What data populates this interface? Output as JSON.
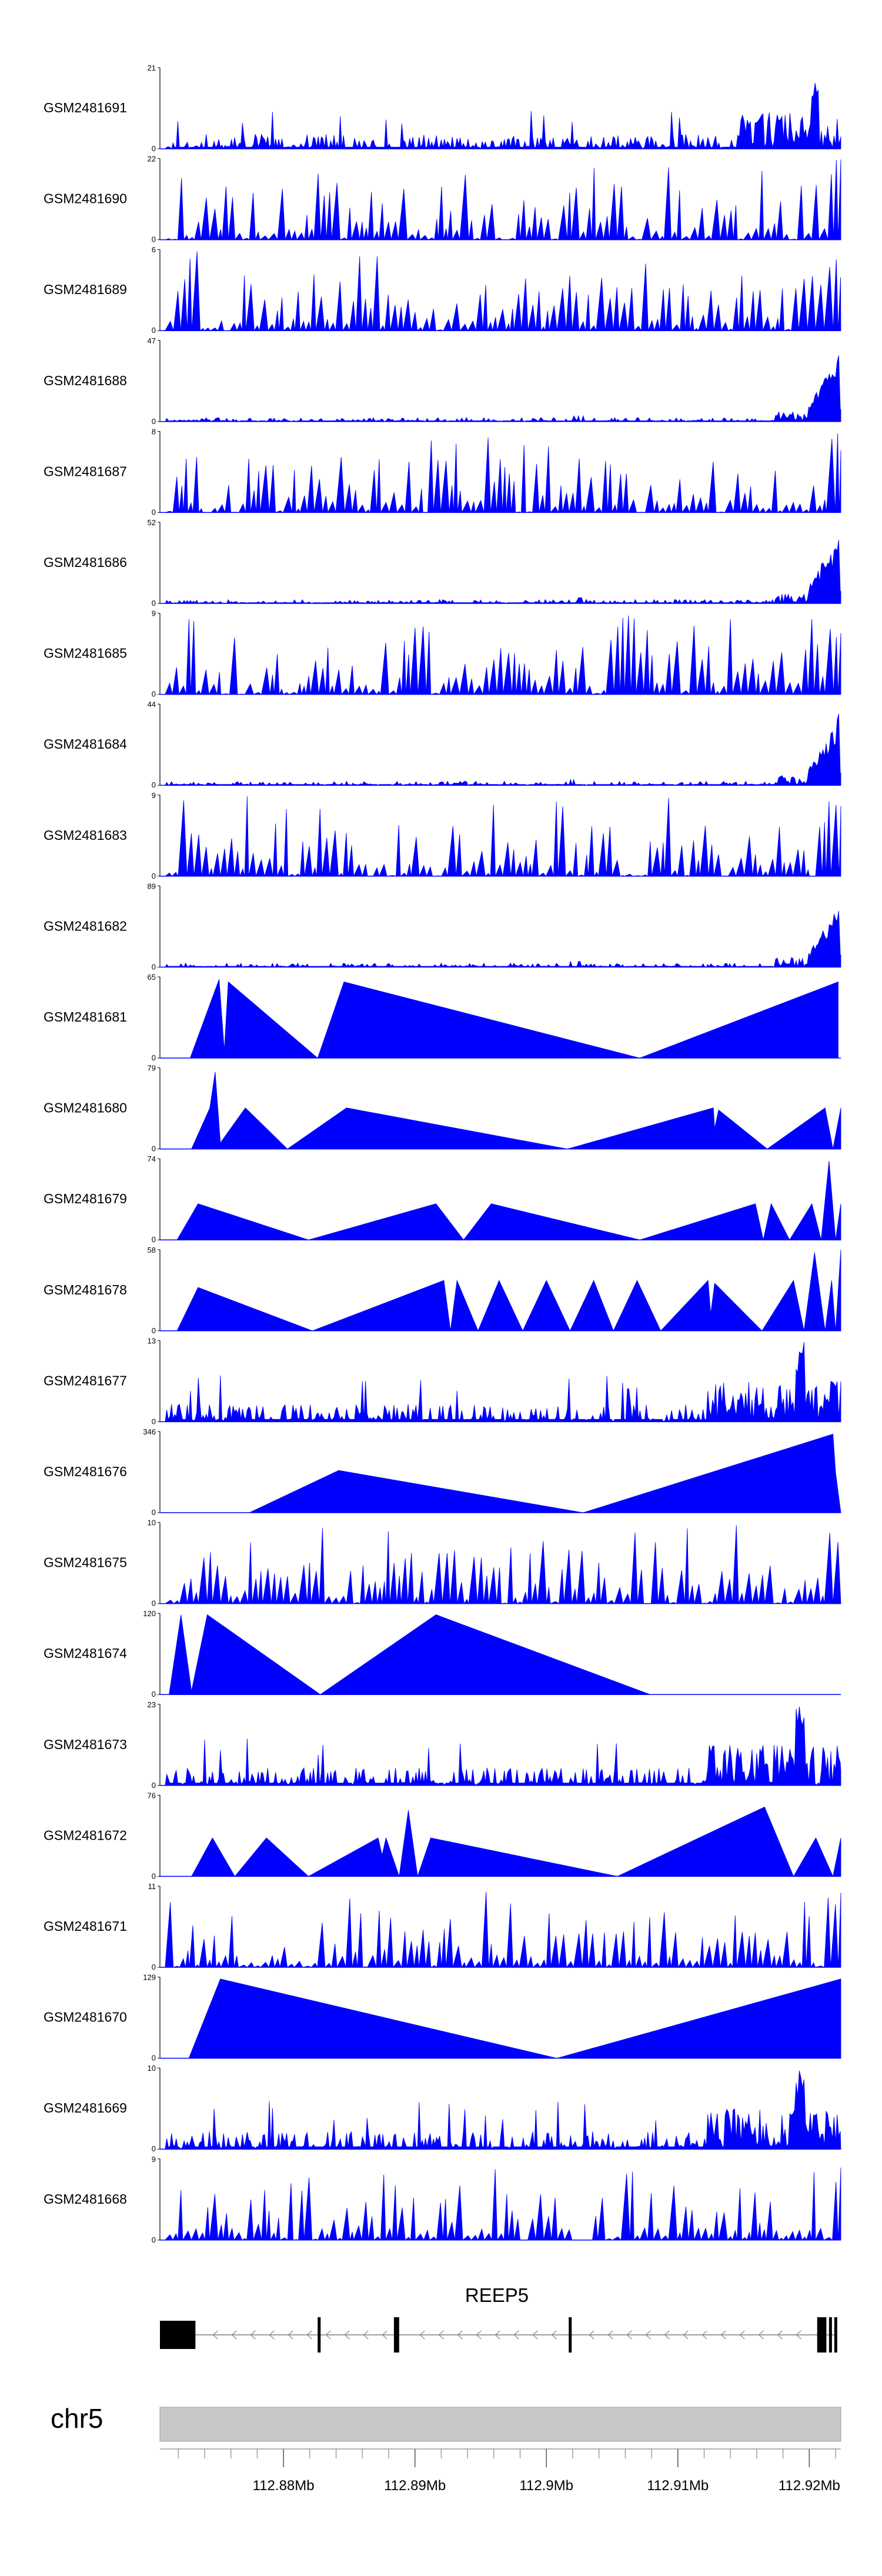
{
  "chart_data": {
    "type": "area",
    "title": "",
    "color": "#0000ff",
    "x_unit": "Mb",
    "xlim": [
      112.8706,
      112.9224
    ],
    "tracks": [
      {
        "name": "GSM2481691",
        "ymax": 21,
        "pattern": "dense_peak_end",
        "seed": 11
      },
      {
        "name": "GSM2481690",
        "ymax": 22,
        "pattern": "sparse",
        "seed": 12
      },
      {
        "name": "GSM2481689",
        "ymax": 6,
        "pattern": "spiky",
        "seed": 13
      },
      {
        "name": "GSM2481688",
        "ymax": 47,
        "pattern": "end_peak",
        "seed": 14
      },
      {
        "name": "GSM2481687",
        "ymax": 8,
        "pattern": "spiky",
        "seed": 15
      },
      {
        "name": "GSM2481686",
        "ymax": 52,
        "pattern": "end_peak",
        "seed": 16
      },
      {
        "name": "GSM2481685",
        "ymax": 9,
        "pattern": "spiky",
        "seed": 17
      },
      {
        "name": "GSM2481684",
        "ymax": 44,
        "pattern": "end_peak",
        "seed": 18
      },
      {
        "name": "GSM2481683",
        "ymax": 9,
        "pattern": "spiky",
        "seed": 19
      },
      {
        "name": "GSM2481682",
        "ymax": 89,
        "pattern": "end_peak",
        "seed": 20
      },
      {
        "name": "GSM2481681",
        "ymax": 65,
        "pattern": "triangles",
        "points": [
          [
            112.8729,
            0
          ],
          [
            112.8751,
            63
          ],
          [
            112.8755,
            6
          ],
          [
            112.8758,
            61
          ],
          [
            112.8826,
            0
          ],
          [
            112.8846,
            61
          ],
          [
            112.9071,
            0
          ],
          [
            112.9222,
            61
          ]
        ]
      },
      {
        "name": "GSM2481680",
        "ymax": 79,
        "pattern": "triangles",
        "points": [
          [
            112.873,
            0
          ],
          [
            112.8744,
            40
          ],
          [
            112.8748,
            75
          ],
          [
            112.8752,
            6
          ],
          [
            112.8771,
            40
          ],
          [
            112.8803,
            0
          ],
          [
            112.8848,
            40
          ],
          [
            112.9016,
            0
          ],
          [
            112.9127,
            40
          ],
          [
            112.9128,
            20
          ],
          [
            112.9131,
            38
          ],
          [
            112.9168,
            0
          ],
          [
            112.9212,
            40
          ],
          [
            112.9218,
            0
          ],
          [
            112.9224,
            40
          ]
        ]
      },
      {
        "name": "GSM2481679",
        "ymax": 74,
        "pattern": "triangles",
        "points": [
          [
            112.8719,
            0
          ],
          [
            112.8735,
            33
          ],
          [
            112.8819,
            0
          ],
          [
            112.8916,
            33
          ],
          [
            112.8937,
            0
          ],
          [
            112.8958,
            33
          ],
          [
            112.9071,
            0
          ],
          [
            112.9159,
            33
          ],
          [
            112.9165,
            0
          ],
          [
            112.9171,
            33
          ],
          [
            112.9185,
            0
          ],
          [
            112.9202,
            33
          ],
          [
            112.9209,
            0
          ],
          [
            112.9215,
            72
          ],
          [
            112.922,
            0
          ],
          [
            112.9224,
            33
          ]
        ]
      },
      {
        "name": "GSM2481678",
        "ymax": 58,
        "pattern": "triangles",
        "points": [
          [
            112.8719,
            0
          ],
          [
            112.8735,
            31
          ],
          [
            112.8822,
            0
          ],
          [
            112.8922,
            36
          ],
          [
            112.8927,
            0
          ],
          [
            112.8932,
            36
          ],
          [
            112.8948,
            0
          ],
          [
            112.8964,
            36
          ],
          [
            112.8982,
            0
          ],
          [
            112.9,
            36
          ],
          [
            112.9018,
            0
          ],
          [
            112.9036,
            36
          ],
          [
            112.9051,
            0
          ],
          [
            112.9069,
            36
          ],
          [
            112.9087,
            0
          ],
          [
            112.9123,
            36
          ],
          [
            112.9125,
            12
          ],
          [
            112.9128,
            34
          ],
          [
            112.9164,
            0
          ],
          [
            112.9188,
            36
          ],
          [
            112.9196,
            0
          ],
          [
            112.9204,
            56
          ],
          [
            112.9212,
            0
          ],
          [
            112.9217,
            36
          ],
          [
            112.922,
            0
          ],
          [
            112.9224,
            58
          ]
        ]
      },
      {
        "name": "GSM2481677",
        "ymax": 13,
        "pattern": "dense_peak_end2",
        "seed": 21
      },
      {
        "name": "GSM2481676",
        "ymax": 346,
        "pattern": "triangles",
        "points": [
          [
            112.8774,
            0
          ],
          [
            112.8842,
            180
          ],
          [
            112.9028,
            0
          ],
          [
            112.9218,
            335
          ],
          [
            112.922,
            170
          ],
          [
            112.9224,
            0
          ]
        ]
      },
      {
        "name": "GSM2481675",
        "ymax": 10,
        "pattern": "spiky",
        "seed": 22
      },
      {
        "name": "GSM2481674",
        "ymax": 120,
        "pattern": "triangles",
        "points": [
          [
            112.8713,
            0
          ],
          [
            112.8722,
            118
          ],
          [
            112.873,
            5
          ],
          [
            112.8742,
            118
          ],
          [
            112.8828,
            0
          ],
          [
            112.8916,
            118
          ],
          [
            112.9079,
            0
          ]
        ]
      },
      {
        "name": "GSM2481673",
        "ymax": 23,
        "pattern": "dense_peak_end2",
        "seed": 23
      },
      {
        "name": "GSM2481672",
        "ymax": 76,
        "pattern": "triangles",
        "points": [
          [
            112.873,
            0
          ],
          [
            112.8746,
            36
          ],
          [
            112.8763,
            0
          ],
          [
            112.8787,
            36
          ],
          [
            112.8819,
            0
          ],
          [
            112.8872,
            36
          ],
          [
            112.8875,
            20
          ],
          [
            112.8878,
            36
          ],
          [
            112.8888,
            0
          ],
          [
            112.8895,
            62
          ],
          [
            112.8902,
            0
          ],
          [
            112.8912,
            36
          ],
          [
            112.9054,
            0
          ],
          [
            112.9166,
            65
          ],
          [
            112.9188,
            0
          ],
          [
            112.9205,
            36
          ],
          [
            112.9218,
            0
          ],
          [
            112.9224,
            36
          ]
        ]
      },
      {
        "name": "GSM2481671",
        "ymax": 11,
        "pattern": "spiky",
        "seed": 24
      },
      {
        "name": "GSM2481670",
        "ymax": 129,
        "pattern": "triangles",
        "points": [
          [
            112.8728,
            0
          ],
          [
            112.8752,
            126
          ],
          [
            112.9008,
            0
          ],
          [
            112.9224,
            126
          ]
        ]
      },
      {
        "name": "GSM2481669",
        "ymax": 10,
        "pattern": "dense_peak_end2",
        "seed": 25
      },
      {
        "name": "GSM2481668",
        "ymax": 9,
        "pattern": "spiky_gap",
        "seed": 26
      }
    ],
    "gene": {
      "name": "REEP5",
      "strand": "-",
      "exons": [
        [
          112.8706,
          112.8733
        ],
        [
          112.8826,
          112.8828
        ],
        [
          112.8884,
          112.8888
        ],
        [
          112.9017,
          112.9019
        ],
        [
          112.9206,
          112.9213
        ],
        [
          112.9215,
          112.9217
        ],
        [
          112.9219,
          112.9221
        ]
      ]
    },
    "chromosome": "chr5",
    "axis": {
      "label_ticks": [
        "112.88Mb",
        "112.89Mb",
        "112.9Mb",
        "112.91Mb",
        "112.92Mb"
      ],
      "label_values": [
        112.88,
        112.89,
        112.9,
        112.91,
        112.92
      ],
      "minor_step": 0.002
    }
  }
}
